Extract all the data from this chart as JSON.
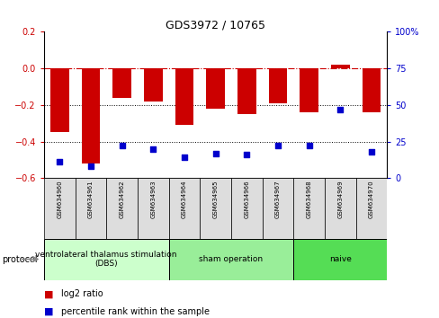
{
  "title": "GDS3972 / 10765",
  "samples": [
    "GSM634960",
    "GSM634961",
    "GSM634962",
    "GSM634963",
    "GSM634964",
    "GSM634965",
    "GSM634966",
    "GSM634967",
    "GSM634968",
    "GSM634969",
    "GSM634970"
  ],
  "log2_ratio": [
    -0.35,
    -0.52,
    -0.16,
    -0.18,
    -0.31,
    -0.22,
    -0.25,
    -0.19,
    -0.24,
    0.02,
    -0.24
  ],
  "percentile_rank": [
    11,
    8,
    22,
    20,
    14,
    17,
    16,
    22,
    22,
    47,
    18
  ],
  "bar_color": "#cc0000",
  "dot_color": "#0000cc",
  "ylim_left": [
    -0.6,
    0.2
  ],
  "ylim_right": [
    0,
    100
  ],
  "right_ticks": [
    0,
    25,
    50,
    75,
    100
  ],
  "left_ticks": [
    -0.6,
    -0.4,
    -0.2,
    0.0,
    0.2
  ],
  "protocol_groups": [
    {
      "label": "ventrolateral thalamus stimulation\n(DBS)",
      "start": 0,
      "end": 3,
      "color": "#ccffcc"
    },
    {
      "label": "sham operation",
      "start": 4,
      "end": 7,
      "color": "#99ee99"
    },
    {
      "label": "naive",
      "start": 8,
      "end": 10,
      "color": "#55dd55"
    }
  ],
  "legend_bar_label": "log2 ratio",
  "legend_dot_label": "percentile rank within the sample",
  "hline_color": "#cc0000",
  "bg_color": "#ffffff",
  "plot_bg": "#ffffff",
  "bar_width": 0.6,
  "title_fontsize": 9,
  "tick_fontsize": 7,
  "sample_fontsize": 5,
  "legend_fontsize": 7,
  "proto_fontsize": 6.5
}
